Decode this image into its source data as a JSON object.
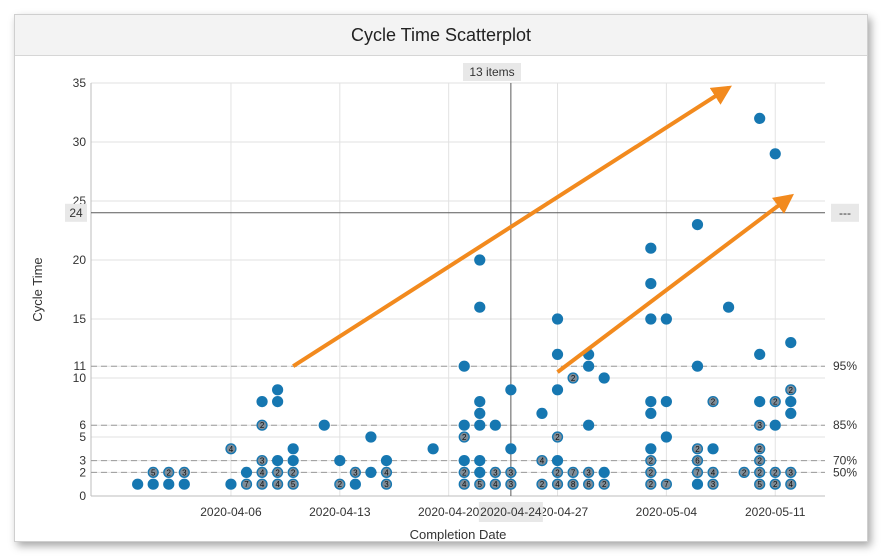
{
  "panel": {
    "title": "Cycle Time Scatterplot",
    "hover_count_label": "13 items",
    "hover_date_label": "2020-04-24",
    "hover_value_label": "24",
    "hover_right_label": "---"
  },
  "chart_data": {
    "type": "scatter",
    "title": "Cycle Time Scatterplot",
    "xlabel": "Completion Date",
    "ylabel": "Cycle Time",
    "x_tick_labels": [
      "2020-04-06",
      "2020-04-13",
      "2020-04-20",
      "2020-04-27",
      "2020-05-04",
      "2020-05-11"
    ],
    "y_ticks": [
      0,
      2,
      3,
      5,
      6,
      10,
      11,
      15,
      20,
      25,
      30,
      35
    ],
    "ylim": [
      0,
      35
    ],
    "grid": true,
    "percentile_lines": [
      {
        "label": "50%",
        "value": 2
      },
      {
        "label": "70%",
        "value": 3
      },
      {
        "label": "85%",
        "value": 6
      },
      {
        "label": "95%",
        "value": 11
      }
    ],
    "points": [
      {
        "x": "2020-03-31",
        "y": 1
      },
      {
        "x": "2020-04-01",
        "y": 1
      },
      {
        "x": "2020-04-01",
        "y": 2,
        "count": "5"
      },
      {
        "x": "2020-04-02",
        "y": 1
      },
      {
        "x": "2020-04-02",
        "y": 2,
        "count": "2"
      },
      {
        "x": "2020-04-03",
        "y": 1
      },
      {
        "x": "2020-04-03",
        "y": 2,
        "count": "3"
      },
      {
        "x": "2020-04-06",
        "y": 1
      },
      {
        "x": "2020-04-06",
        "y": 4,
        "count": "4"
      },
      {
        "x": "2020-04-07",
        "y": 1,
        "count": "7"
      },
      {
        "x": "2020-04-07",
        "y": 2
      },
      {
        "x": "2020-04-08",
        "y": 1,
        "count": "4"
      },
      {
        "x": "2020-04-08",
        "y": 2,
        "count": "4"
      },
      {
        "x": "2020-04-08",
        "y": 3,
        "count": "3"
      },
      {
        "x": "2020-04-08",
        "y": 6,
        "count": "2"
      },
      {
        "x": "2020-04-08",
        "y": 8
      },
      {
        "x": "2020-04-09",
        "y": 1,
        "count": "4"
      },
      {
        "x": "2020-04-09",
        "y": 2,
        "count": "2"
      },
      {
        "x": "2020-04-09",
        "y": 3
      },
      {
        "x": "2020-04-09",
        "y": 8
      },
      {
        "x": "2020-04-09",
        "y": 9
      },
      {
        "x": "2020-04-10",
        "y": 1,
        "count": "5"
      },
      {
        "x": "2020-04-10",
        "y": 2,
        "count": "2"
      },
      {
        "x": "2020-04-10",
        "y": 3
      },
      {
        "x": "2020-04-10",
        "y": 4
      },
      {
        "x": "2020-04-12",
        "y": 6
      },
      {
        "x": "2020-04-13",
        "y": 1,
        "count": "2"
      },
      {
        "x": "2020-04-13",
        "y": 3
      },
      {
        "x": "2020-04-14",
        "y": 1
      },
      {
        "x": "2020-04-14",
        "y": 2,
        "count": "3"
      },
      {
        "x": "2020-04-15",
        "y": 2
      },
      {
        "x": "2020-04-15",
        "y": 5
      },
      {
        "x": "2020-04-16",
        "y": 1,
        "count": "3"
      },
      {
        "x": "2020-04-16",
        "y": 2,
        "count": "4"
      },
      {
        "x": "2020-04-16",
        "y": 3
      },
      {
        "x": "2020-04-19",
        "y": 4
      },
      {
        "x": "2020-04-21",
        "y": 1,
        "count": "4"
      },
      {
        "x": "2020-04-21",
        "y": 2,
        "count": "2"
      },
      {
        "x": "2020-04-21",
        "y": 3
      },
      {
        "x": "2020-04-21",
        "y": 5,
        "count": "2"
      },
      {
        "x": "2020-04-21",
        "y": 6
      },
      {
        "x": "2020-04-21",
        "y": 11
      },
      {
        "x": "2020-04-22",
        "y": 1,
        "count": "5"
      },
      {
        "x": "2020-04-22",
        "y": 2
      },
      {
        "x": "2020-04-22",
        "y": 3
      },
      {
        "x": "2020-04-22",
        "y": 6
      },
      {
        "x": "2020-04-22",
        "y": 7
      },
      {
        "x": "2020-04-22",
        "y": 8
      },
      {
        "x": "2020-04-22",
        "y": 16
      },
      {
        "x": "2020-04-22",
        "y": 20
      },
      {
        "x": "2020-04-23",
        "y": 1,
        "count": "4"
      },
      {
        "x": "2020-04-23",
        "y": 2,
        "count": "3"
      },
      {
        "x": "2020-04-23",
        "y": 6
      },
      {
        "x": "2020-04-24",
        "y": 1,
        "count": "3"
      },
      {
        "x": "2020-04-24",
        "y": 2,
        "count": "3"
      },
      {
        "x": "2020-04-24",
        "y": 4
      },
      {
        "x": "2020-04-24",
        "y": 9
      },
      {
        "x": "2020-04-26",
        "y": 1,
        "count": "2"
      },
      {
        "x": "2020-04-26",
        "y": 3,
        "count": "4"
      },
      {
        "x": "2020-04-26",
        "y": 7
      },
      {
        "x": "2020-04-27",
        "y": 1,
        "count": "4"
      },
      {
        "x": "2020-04-27",
        "y": 2,
        "count": "2"
      },
      {
        "x": "2020-04-27",
        "y": 3
      },
      {
        "x": "2020-04-27",
        "y": 5,
        "count": "2"
      },
      {
        "x": "2020-04-27",
        "y": 9
      },
      {
        "x": "2020-04-27",
        "y": 12
      },
      {
        "x": "2020-04-27",
        "y": 15
      },
      {
        "x": "2020-04-28",
        "y": 1,
        "count": "8"
      },
      {
        "x": "2020-04-28",
        "y": 2,
        "count": "7"
      },
      {
        "x": "2020-04-28",
        "y": 10,
        "count": "2"
      },
      {
        "x": "2020-04-29",
        "y": 1,
        "count": "6"
      },
      {
        "x": "2020-04-29",
        "y": 2,
        "count": "3"
      },
      {
        "x": "2020-04-29",
        "y": 6
      },
      {
        "x": "2020-04-29",
        "y": 11
      },
      {
        "x": "2020-04-29",
        "y": 12
      },
      {
        "x": "2020-04-30",
        "y": 1,
        "count": "2"
      },
      {
        "x": "2020-04-30",
        "y": 2
      },
      {
        "x": "2020-04-30",
        "y": 10
      },
      {
        "x": "2020-05-03",
        "y": 1,
        "count": "2"
      },
      {
        "x": "2020-05-03",
        "y": 2,
        "count": "2"
      },
      {
        "x": "2020-05-03",
        "y": 3,
        "count": "2"
      },
      {
        "x": "2020-05-03",
        "y": 4
      },
      {
        "x": "2020-05-03",
        "y": 7
      },
      {
        "x": "2020-05-03",
        "y": 8
      },
      {
        "x": "2020-05-03",
        "y": 15
      },
      {
        "x": "2020-05-03",
        "y": 18
      },
      {
        "x": "2020-05-03",
        "y": 21
      },
      {
        "x": "2020-05-04",
        "y": 1,
        "count": "7"
      },
      {
        "x": "2020-05-04",
        "y": 5
      },
      {
        "x": "2020-05-04",
        "y": 8
      },
      {
        "x": "2020-05-04",
        "y": 15
      },
      {
        "x": "2020-05-06",
        "y": 1
      },
      {
        "x": "2020-05-06",
        "y": 2,
        "count": "7"
      },
      {
        "x": "2020-05-06",
        "y": 3,
        "count": "6"
      },
      {
        "x": "2020-05-06",
        "y": 4,
        "count": "2"
      },
      {
        "x": "2020-05-06",
        "y": 11
      },
      {
        "x": "2020-05-06",
        "y": 23
      },
      {
        "x": "2020-05-07",
        "y": 1,
        "count": "3"
      },
      {
        "x": "2020-05-07",
        "y": 2,
        "count": "4"
      },
      {
        "x": "2020-05-07",
        "y": 4
      },
      {
        "x": "2020-05-07",
        "y": 8,
        "count": "2"
      },
      {
        "x": "2020-05-08",
        "y": 16
      },
      {
        "x": "2020-05-09",
        "y": 2,
        "count": "2"
      },
      {
        "x": "2020-05-10",
        "y": 1,
        "count": "5"
      },
      {
        "x": "2020-05-10",
        "y": 2,
        "count": "2"
      },
      {
        "x": "2020-05-10",
        "y": 3,
        "count": "2"
      },
      {
        "x": "2020-05-10",
        "y": 4,
        "count": "2"
      },
      {
        "x": "2020-05-10",
        "y": 6,
        "count": "3"
      },
      {
        "x": "2020-05-10",
        "y": 8
      },
      {
        "x": "2020-05-10",
        "y": 12
      },
      {
        "x": "2020-05-10",
        "y": 32
      },
      {
        "x": "2020-05-11",
        "y": 1,
        "count": "2"
      },
      {
        "x": "2020-05-11",
        "y": 2,
        "count": "2"
      },
      {
        "x": "2020-05-11",
        "y": 6
      },
      {
        "x": "2020-05-11",
        "y": 8,
        "count": "2"
      },
      {
        "x": "2020-05-11",
        "y": 29
      },
      {
        "x": "2020-05-12",
        "y": 1,
        "count": "4"
      },
      {
        "x": "2020-05-12",
        "y": 2,
        "count": "3"
      },
      {
        "x": "2020-05-12",
        "y": 7
      },
      {
        "x": "2020-05-12",
        "y": 8
      },
      {
        "x": "2020-05-12",
        "y": 9,
        "count": "2"
      },
      {
        "x": "2020-05-12",
        "y": 13
      }
    ],
    "annotations": [
      {
        "type": "arrow",
        "from": {
          "x": "2020-04-10",
          "y": 11
        },
        "to": {
          "x": "2020-05-08",
          "y": 34.6
        },
        "color": "#f28a1e"
      },
      {
        "type": "arrow",
        "from": {
          "x": "2020-04-27",
          "y": 10.5
        },
        "to": {
          "x": "2020-05-12",
          "y": 25.4
        },
        "color": "#f28a1e"
      }
    ],
    "colors": {
      "point": "#1677b1",
      "point_label_bg": "#7f8c97",
      "grid": "#e2e2e2",
      "percentile": "#9a9a9a",
      "crosshair": "#5a5a5a",
      "arrow": "#f28a1e"
    }
  }
}
